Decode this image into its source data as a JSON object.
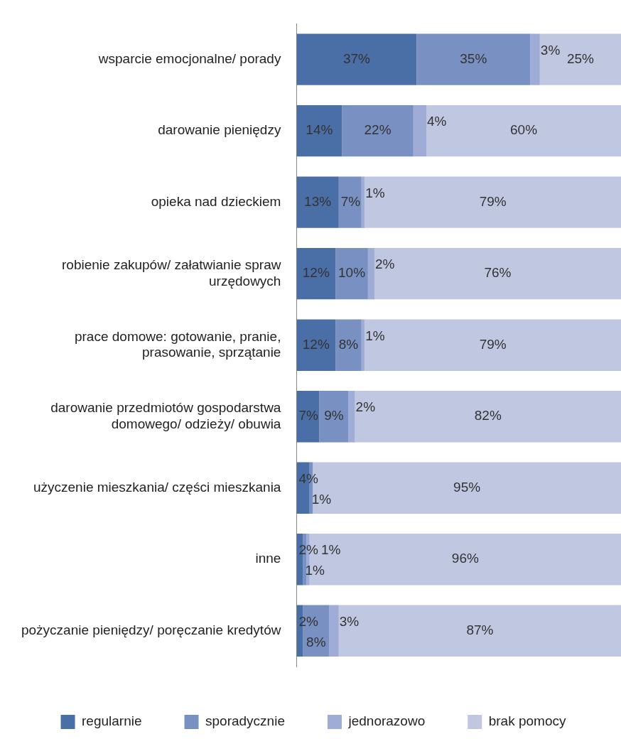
{
  "chart_data": {
    "type": "bar",
    "orientation": "horizontal",
    "stacked": true,
    "relative": false,
    "legend": "bottom",
    "categories": [
      "wsparcie emocjonalne/ porady",
      "darowanie pieniędzy",
      "opieka nad dzieckiem",
      "robienie zakupów/ załatwianie spraw urzędowych",
      "prace domowe: gotowanie, pranie, prasowanie, sprzątanie",
      "darowanie przedmiotów gospodarstwa domowego/ odzieży/ obuwia",
      "użyczenie mieszkania/ części mieszkania",
      "inne",
      "pożyczanie pieniędzy/ poręczanie kredytów"
    ],
    "series": [
      {
        "name": "regularnie",
        "color": "#4a6ea6",
        "values": [
          37,
          14,
          13,
          12,
          12,
          7,
          4,
          2,
          2
        ],
        "value_labels": [
          "37%",
          "14%",
          "13%",
          "12%",
          "12%",
          "7%",
          "4%",
          "2%",
          "2%"
        ]
      },
      {
        "name": "sporadycznie",
        "color": "#7890c2",
        "values": [
          35,
          22,
          7,
          10,
          8,
          9,
          1,
          1,
          8
        ],
        "value_labels": [
          "35%",
          "22%",
          "7%",
          "10%",
          "8%",
          "9%",
          "1%",
          "1%",
          "8%"
        ]
      },
      {
        "name": "jednorazowo",
        "color": "#9eacd6",
        "values": [
          3,
          4,
          1,
          2,
          1,
          2,
          0,
          1,
          3
        ],
        "value_labels": [
          "3%",
          "4%",
          "1%",
          "2%",
          "1%",
          "2%",
          null,
          "1%",
          "3%"
        ]
      },
      {
        "name": "brak pomocy",
        "color": "#c0c7e1",
        "values": [
          25,
          60,
          79,
          76,
          79,
          82,
          95,
          96,
          87
        ],
        "value_labels": [
          "25%",
          "60%",
          "79%",
          "76%",
          "79%",
          "82%",
          "95%",
          "96%",
          "87%"
        ]
      }
    ]
  }
}
